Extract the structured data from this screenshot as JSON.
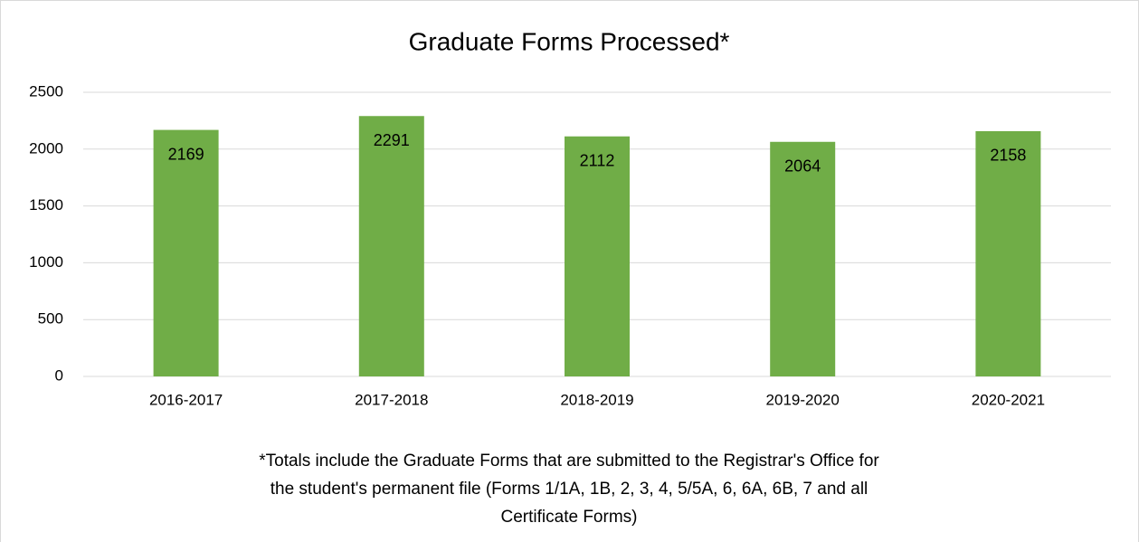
{
  "chart_data": {
    "type": "bar",
    "title": "Graduate Forms Processed*",
    "categories": [
      "2016-2017",
      "2017-2018",
      "2018-2019",
      "2019-2020",
      "2020-2021"
    ],
    "values": [
      2169,
      2291,
      2112,
      2064,
      2158
    ],
    "color": "#70ad47",
    "ylim": [
      0,
      2500
    ],
    "yticks": [
      0,
      500,
      1000,
      1500,
      2000,
      2500
    ],
    "grid": true,
    "footnote": "*Totals include the Graduate Forms that are submitted to the Registrar's Office for the student's permanent file (Forms 1/1A, 1B, 2, 3, 4, 5/5A, 6, 6A, 6B, 7 and all Certificate Forms)"
  }
}
